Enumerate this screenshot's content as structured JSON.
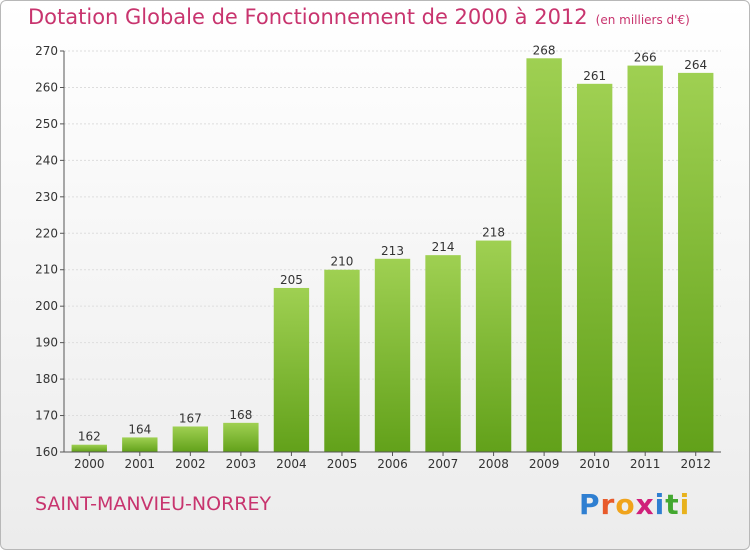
{
  "title": {
    "main": "Dotation Globale de Fonctionnement de 2000 à 2012",
    "unit": "(en milliers d'€)"
  },
  "commune": "SAINT-MANVIEU-NORREY",
  "logo": {
    "text": "Proxiti",
    "letter_colors": [
      "#2f7fd1",
      "#e85a2a",
      "#f0a41c",
      "#d0207a",
      "#2f7fd1",
      "#43a830",
      "#e8b21c"
    ]
  },
  "colors": {
    "title": "#c8346e",
    "bar_light": "#9fd052",
    "bar_dark": "#62a11a",
    "grid": "#dddddd"
  },
  "chart_data": {
    "type": "bar",
    "title": "Dotation Globale de Fonctionnement de 2000 à 2012",
    "subtitle": "(en milliers d'€)",
    "categories": [
      "2000",
      "2001",
      "2002",
      "2003",
      "2004",
      "2005",
      "2006",
      "2007",
      "2008",
      "2009",
      "2010",
      "2011",
      "2012"
    ],
    "values": [
      162,
      164,
      167,
      168,
      205,
      210,
      213,
      214,
      218,
      268,
      261,
      266,
      264
    ],
    "ylim": [
      160,
      270
    ],
    "yticks": [
      160,
      170,
      180,
      190,
      200,
      210,
      220,
      230,
      240,
      250,
      260,
      270
    ],
    "grid": true
  }
}
